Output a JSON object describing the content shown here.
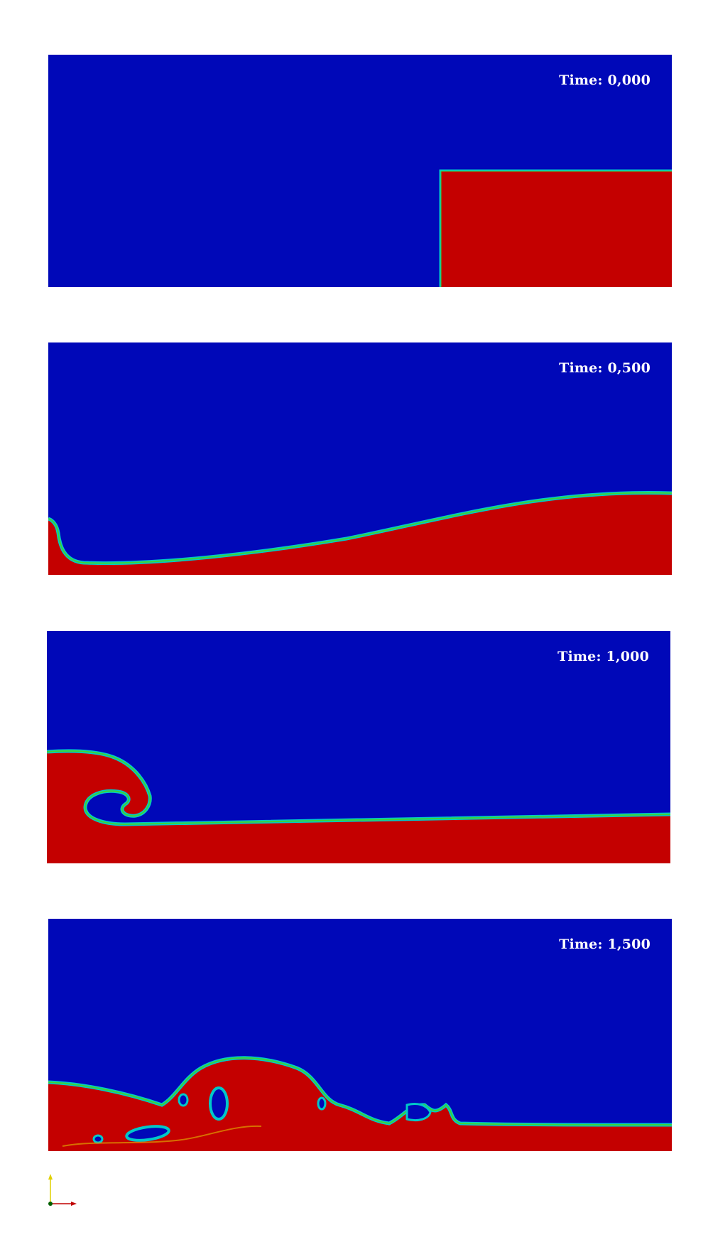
{
  "frames": [
    {
      "prefix": "Time:",
      "value": "0,000"
    },
    {
      "prefix": "Time:",
      "value": "0,500"
    },
    {
      "prefix": "Time:",
      "value": "1,000"
    },
    {
      "prefix": "Time:",
      "value": "1,500"
    }
  ],
  "colors": {
    "air": "#0008b8",
    "water": "#c40000",
    "interface_outer": "#00c8c8",
    "interface_inner": "#3ad23a",
    "axis_x": "#c00000",
    "axis_y": "#e0d000",
    "axis_origin": "#006000",
    "background": "#ffffff"
  },
  "orientation_axes": {
    "x_icon": "x-axis-arrow-icon",
    "y_icon": "y-axis-arrow-icon"
  }
}
